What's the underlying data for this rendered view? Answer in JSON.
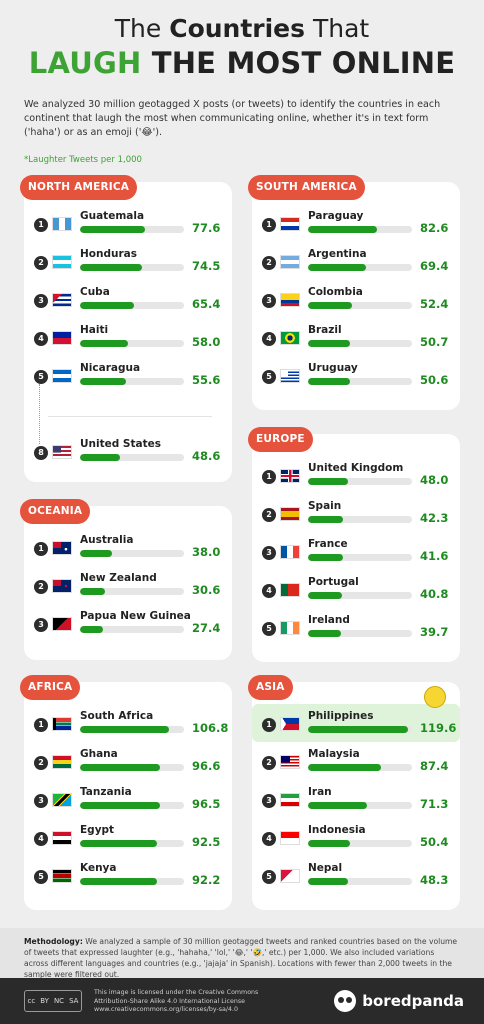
{
  "title": {
    "line1_pre": "The ",
    "line1_bold": "Countries",
    "line1_post": " That",
    "line2_green": "LAUGH",
    "line2_dark": " THE MOST ONLINE"
  },
  "intro": "We analyzed 30 million geotagged X posts (or tweets) to identify the countries in each continent that laugh the most when communicating online, whether it's in text form ('haha') or as an emoji ('😂').",
  "unit_note": "*Laughter Tweets per 1,000",
  "colors": {
    "accent_green": "#3da334",
    "bar_green": "#1f9a21",
    "tag_red": "#e5533d",
    "highlight": "#dff3da"
  },
  "chart_data": [
    {
      "type": "bar",
      "title": "NORTH AMERICA",
      "ranks": [
        "1",
        "2",
        "3",
        "4",
        "5",
        "8"
      ],
      "categories": [
        "Guatemala",
        "Honduras",
        "Cuba",
        "Haiti",
        "Nicaragua",
        "United States"
      ],
      "values": [
        77.6,
        74.5,
        65.4,
        58.0,
        55.6,
        48.6
      ],
      "xlim": [
        0,
        125
      ]
    },
    {
      "type": "bar",
      "title": "SOUTH AMERICA",
      "ranks": [
        "1",
        "2",
        "3",
        "4",
        "5"
      ],
      "categories": [
        "Paraguay",
        "Argentina",
        "Colombia",
        "Brazil",
        "Uruguay"
      ],
      "values": [
        82.6,
        69.4,
        52.4,
        50.7,
        50.6
      ],
      "xlim": [
        0,
        125
      ]
    },
    {
      "type": "bar",
      "title": "EUROPE",
      "ranks": [
        "1",
        "2",
        "3",
        "4",
        "5"
      ],
      "categories": [
        "United Kingdom",
        "Spain",
        "France",
        "Portugal",
        "Ireland"
      ],
      "values": [
        48.0,
        42.3,
        41.6,
        40.8,
        39.7
      ],
      "xlim": [
        0,
        125
      ]
    },
    {
      "type": "bar",
      "title": "OCEANIA",
      "ranks": [
        "1",
        "2",
        "3"
      ],
      "categories": [
        "Australia",
        "New Zealand",
        "Papua New Guinea"
      ],
      "values": [
        38.0,
        30.6,
        27.4
      ],
      "xlim": [
        0,
        125
      ]
    },
    {
      "type": "bar",
      "title": "AFRICA",
      "ranks": [
        "1",
        "2",
        "3",
        "4",
        "5"
      ],
      "categories": [
        "South Africa",
        "Ghana",
        "Tanzania",
        "Egypt",
        "Kenya"
      ],
      "values": [
        106.8,
        96.6,
        96.5,
        92.5,
        92.2
      ],
      "xlim": [
        0,
        125
      ]
    },
    {
      "type": "bar",
      "title": "ASIA",
      "ranks": [
        "1",
        "2",
        "3",
        "4",
        "5"
      ],
      "categories": [
        "Philippines",
        "Malaysia",
        "Iran",
        "Indonesia",
        "Nepal"
      ],
      "values": [
        119.6,
        87.4,
        71.3,
        50.4,
        48.3
      ],
      "xlim": [
        0,
        125
      ],
      "highlight_index": 0
    }
  ],
  "methodology_label": "Methodology:",
  "methodology": " We analyzed a sample of 30 million geotagged tweets and ranked countries based on the volume of tweets that expressed laughter (e.g., 'hahaha,' 'lol,' '😂,' '🤣,' etc.) per 1,000. We also included variations across different languages and countries (e.g., 'jajaja' in Spanish). Locations with fewer than 2,000 tweets in the sample were filtered out.",
  "license": {
    "line1": "This image is licensed under the Creative Commons",
    "line2": "Attribution-Share Alike 4.0 International License",
    "line3": "www.creativecommons.org/licenses/by-sa/4.0",
    "badge": [
      "cc",
      "BY",
      "NC",
      "SA"
    ]
  },
  "brand": "boredpanda"
}
